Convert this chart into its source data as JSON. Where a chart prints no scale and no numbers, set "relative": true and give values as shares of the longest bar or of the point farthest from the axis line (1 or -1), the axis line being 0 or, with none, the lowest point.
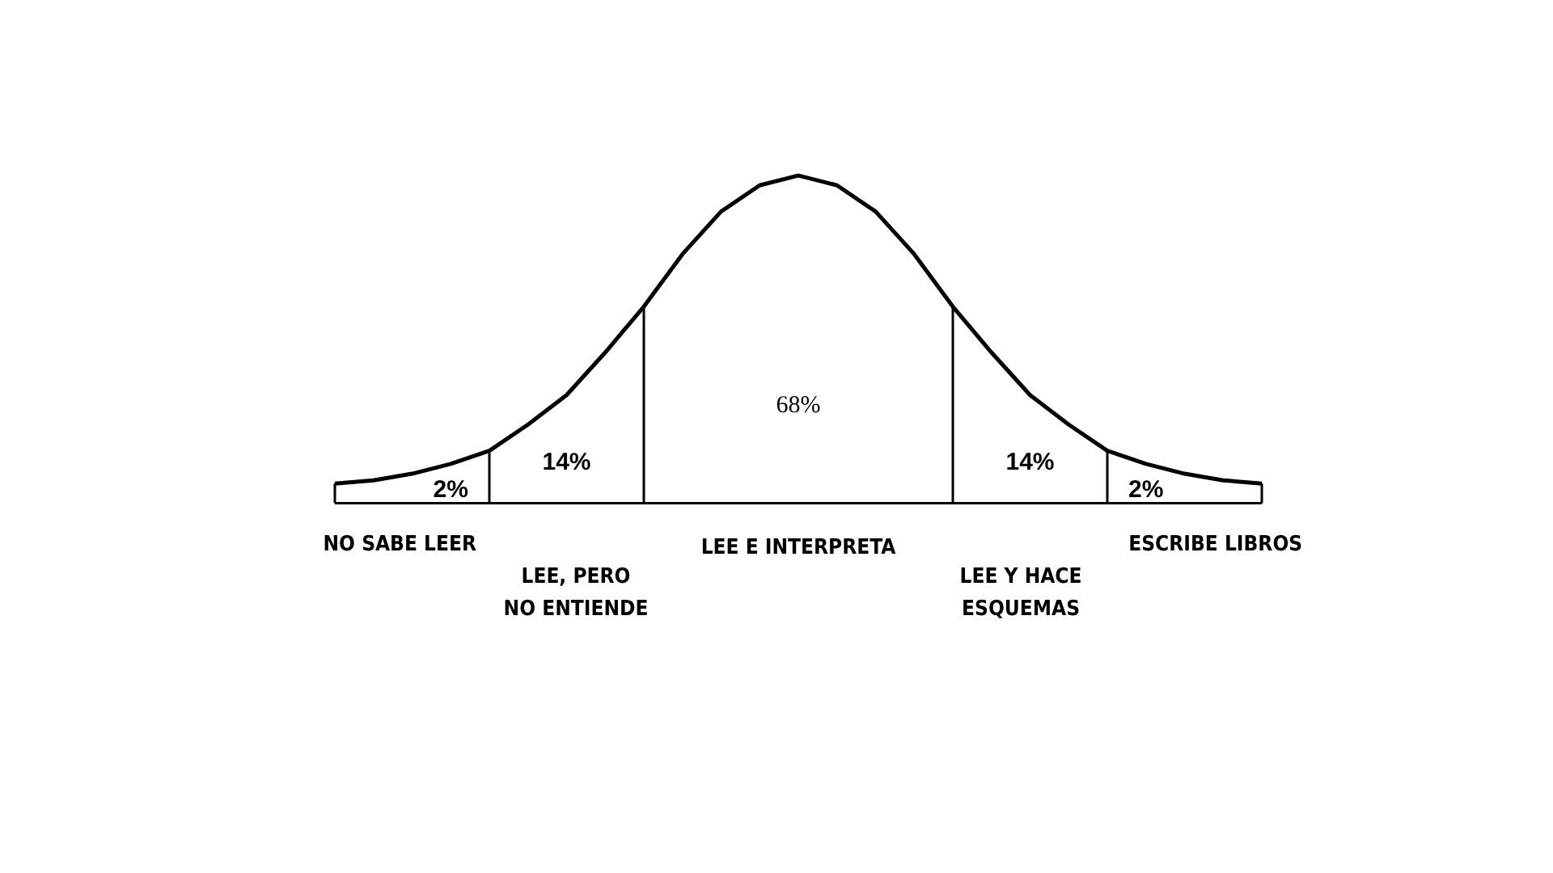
{
  "chart_data": {
    "type": "line",
    "relative": true,
    "color": "#000000",
    "categories": [
      null,
      null,
      null,
      null,
      null,
      null,
      null,
      null,
      null,
      null,
      null,
      null,
      null,
      null,
      null,
      null,
      null,
      null,
      null,
      null,
      null,
      null,
      null,
      null,
      null
    ],
    "values": [
      0.06,
      0.07,
      0.09,
      0.12,
      0.16,
      0.24,
      0.33,
      0.46,
      0.6,
      0.76,
      0.89,
      0.97,
      1,
      0.97,
      0.89,
      0.76,
      0.6,
      0.46,
      0.33,
      0.24,
      0.16,
      0.12,
      0.09,
      0.07,
      0.06
    ],
    "annotations": [
      "2%",
      "14%",
      "68%",
      "14%",
      "2%",
      "NO SABE LEER",
      "LEE, PERO\nNO ENTIENDE",
      "LEE E INTERPRETA",
      "LEE Y HACE\nESQUEMAS",
      "ESCRIBE LIBROS"
    ]
  }
}
